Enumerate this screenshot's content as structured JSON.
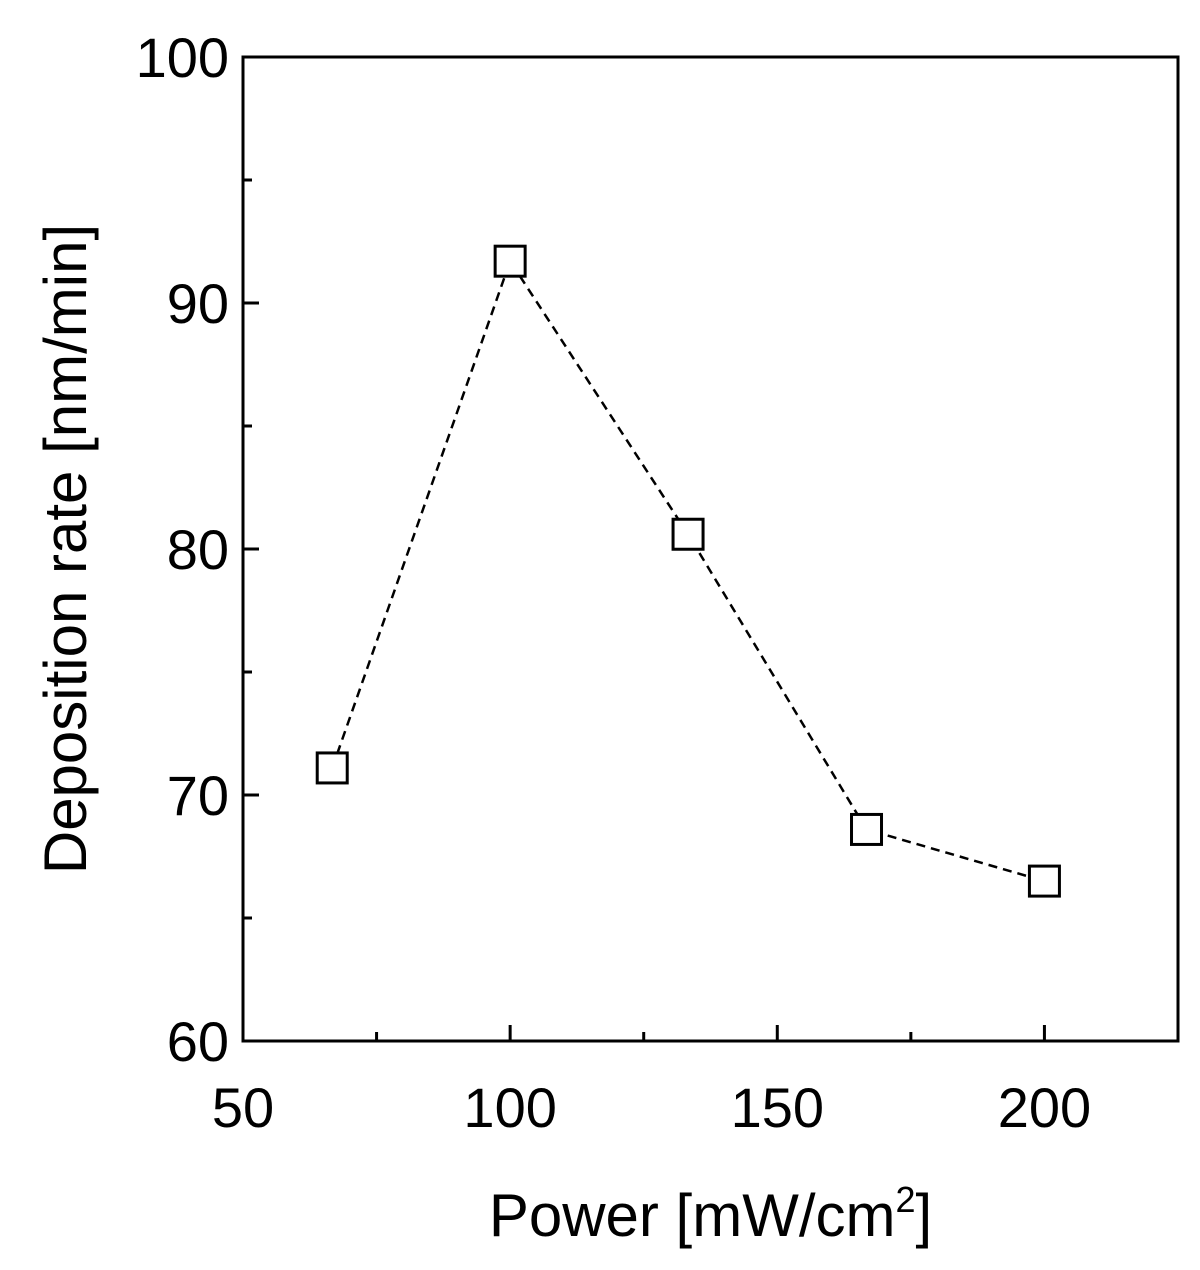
{
  "chart_data": {
    "type": "scatter",
    "title": "",
    "xlabel": "Power [mW/cm",
    "xlabel_superscript": "2",
    "xlabel_suffix": "]",
    "ylabel": "Deposition rate [nm/min]",
    "xlim": [
      50,
      225
    ],
    "ylim": [
      60,
      100
    ],
    "x_major_ticks": [
      50,
      100,
      150,
      200
    ],
    "x_minor_ticks": [
      75,
      125,
      175
    ],
    "y_major_ticks": [
      60,
      70,
      80,
      90,
      100
    ],
    "y_minor_ticks": [
      65,
      75,
      85,
      95
    ],
    "grid": false,
    "series": [
      {
        "name": "Deposition rate",
        "marker": "open-square",
        "line_style": "dashed",
        "color": "#000000",
        "x": [
          66.7,
          100,
          133.3,
          166.7,
          200
        ],
        "y": [
          71.1,
          91.7,
          80.6,
          68.6,
          66.5
        ]
      }
    ]
  }
}
